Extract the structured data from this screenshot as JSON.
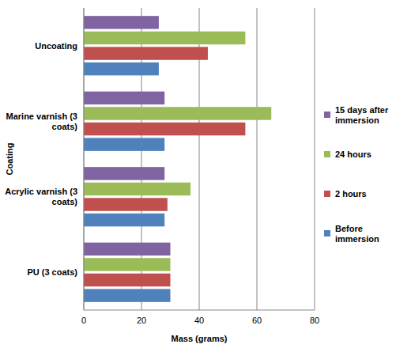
{
  "chart_data": {
    "type": "bar",
    "orientation": "horizontal",
    "x_label": "Mass (grams)",
    "y_label": "Coating",
    "categories": [
      "Uncoating",
      "Marine varnish (3 coats)",
      "Acrylic varnish (3 coats)",
      "PU (3 coats)"
    ],
    "series": [
      {
        "name": "15 days after immersion",
        "color": "#8064a2",
        "values": [
          26,
          28,
          28,
          30
        ]
      },
      {
        "name": "24 hours",
        "color": "#9bbb59",
        "values": [
          56,
          65,
          37,
          30
        ]
      },
      {
        "name": "2 hours",
        "color": "#c0504d",
        "values": [
          43,
          56,
          29,
          30
        ]
      },
      {
        "name": "Before immersion",
        "color": "#4f81bd",
        "values": [
          26,
          28,
          28,
          30
        ]
      }
    ],
    "xlim": [
      0,
      80
    ],
    "xticks": [
      0,
      20,
      40,
      60,
      80
    ],
    "grid": true,
    "legend": "right"
  }
}
